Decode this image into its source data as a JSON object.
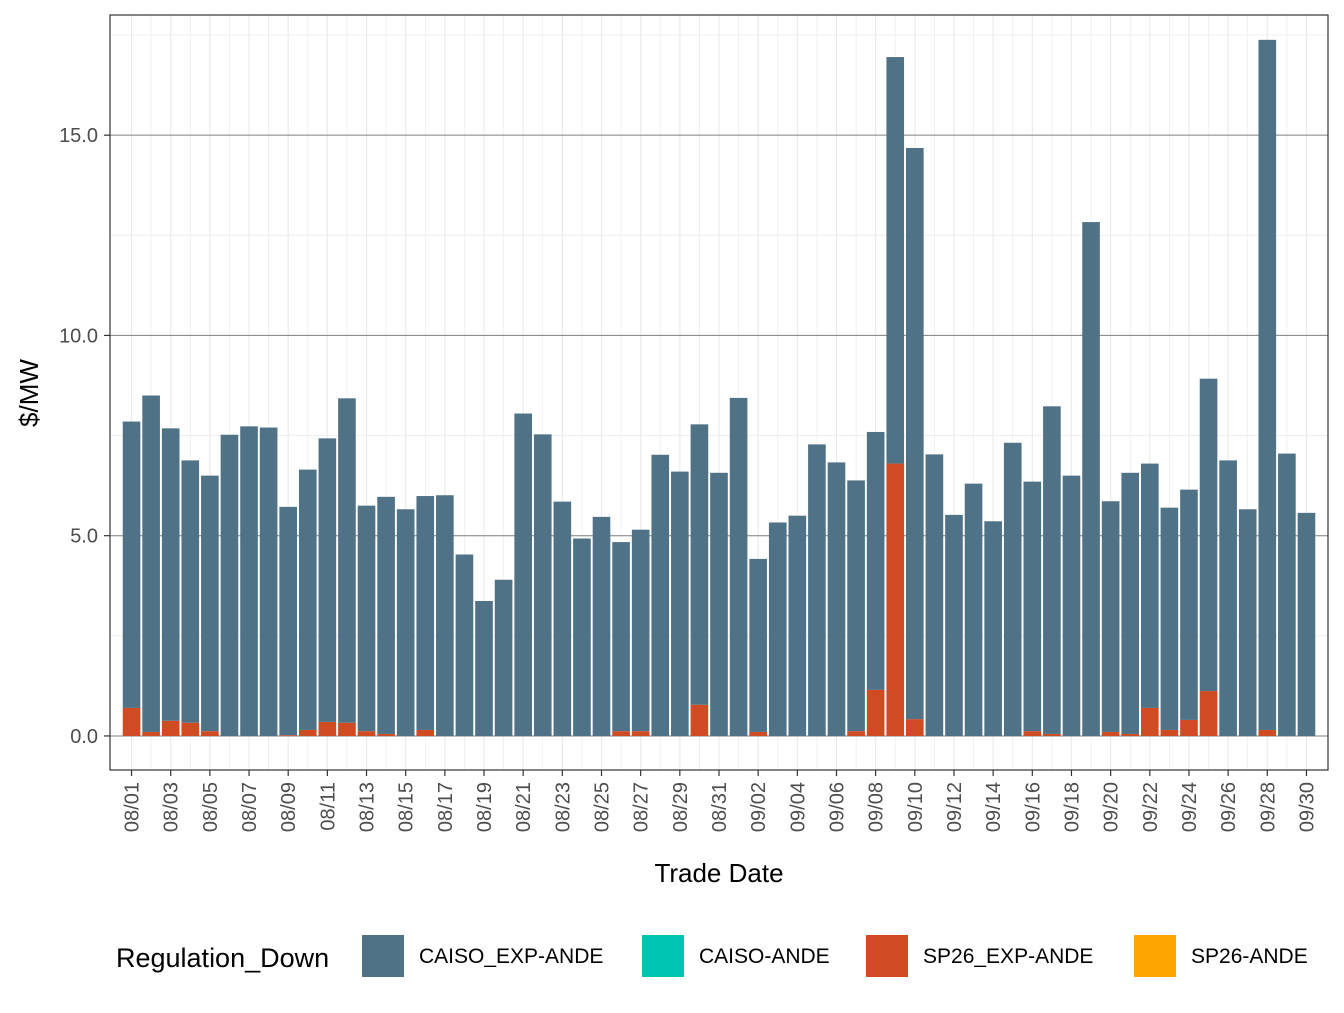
{
  "chart_data": {
    "type": "bar",
    "stacked": true,
    "xlabel": "Trade Date",
    "ylabel": "$/MW",
    "ylim": [
      -0.85,
      18
    ],
    "yticks": [
      0,
      5,
      10,
      15
    ],
    "ytick_labels": [
      "0.0",
      "5.0",
      "10.0",
      "15.0"
    ],
    "grid": true,
    "legend_title": "Regulation_Down",
    "legend_position": "bottom",
    "categories": [
      "08/01",
      "08/02",
      "08/03",
      "08/04",
      "08/05",
      "08/06",
      "08/07",
      "08/08",
      "08/09",
      "08/10",
      "08/11",
      "08/12",
      "08/13",
      "08/14",
      "08/15",
      "08/16",
      "08/17",
      "08/18",
      "08/19",
      "08/20",
      "08/21",
      "08/22",
      "08/23",
      "08/24",
      "08/25",
      "08/26",
      "08/27",
      "08/28",
      "08/29",
      "08/30",
      "08/31",
      "09/01",
      "09/02",
      "09/03",
      "09/04",
      "09/05",
      "09/06",
      "09/07",
      "09/08",
      "09/09",
      "09/10",
      "09/11",
      "09/12",
      "09/13",
      "09/14",
      "09/15",
      "09/16",
      "09/17",
      "09/18",
      "09/19",
      "09/20",
      "09/21",
      "09/22",
      "09/23",
      "09/24",
      "09/25",
      "09/26",
      "09/27",
      "09/28",
      "09/29",
      "09/30"
    ],
    "tick_labels": [
      "08/01",
      "08/03",
      "08/05",
      "08/07",
      "08/09",
      "08/11",
      "08/13",
      "08/15",
      "08/17",
      "08/19",
      "08/21",
      "08/23",
      "08/25",
      "08/27",
      "08/29",
      "08/31",
      "09/02",
      "09/04",
      "09/06",
      "09/08",
      "09/10",
      "09/12",
      "09/14",
      "09/16",
      "09/18",
      "09/20",
      "09/22",
      "09/24",
      "09/26",
      "09/28",
      "09/30"
    ],
    "series": [
      {
        "name": "SP26_EXP-ANDE",
        "color": "#D04A22",
        "values": [
          0.7,
          0.1,
          0.38,
          0.33,
          0.12,
          0,
          0,
          0,
          0.02,
          0.15,
          0.35,
          0.33,
          0.12,
          0.05,
          0,
          0.15,
          0,
          0,
          0,
          0,
          0,
          0,
          0,
          0,
          0,
          0.12,
          0.12,
          0,
          0,
          0.78,
          0,
          0,
          0.1,
          0,
          0,
          0,
          0,
          0.12,
          1.15,
          6.8,
          0.42,
          0,
          0,
          0,
          0,
          0,
          0.12,
          0.05,
          0,
          0,
          0.1,
          0.05,
          0.7,
          0.15,
          0.4,
          1.12,
          0,
          0,
          0.15,
          0,
          0
        ]
      },
      {
        "name": "CAISO_EXP-ANDE",
        "color": "#4F7286",
        "values": [
          7.15,
          8.4,
          7.3,
          6.55,
          6.38,
          7.52,
          7.73,
          7.7,
          5.7,
          6.5,
          7.08,
          8.1,
          5.63,
          5.92,
          5.66,
          5.84,
          6.01,
          4.53,
          3.37,
          3.9,
          8.05,
          7.53,
          5.85,
          4.93,
          5.47,
          4.72,
          5.03,
          7.02,
          6.6,
          7.0,
          6.57,
          8.44,
          4.32,
          5.33,
          5.5,
          7.28,
          6.83,
          6.26,
          6.44,
          10.15,
          14.26,
          7.03,
          5.52,
          6.3,
          5.36,
          7.32,
          6.23,
          8.18,
          6.5,
          12.83,
          5.76,
          6.52,
          6.1,
          5.55,
          5.75,
          7.8,
          6.88,
          5.66,
          17.23,
          7.05,
          5.57
        ]
      },
      {
        "name": "CAISO-ANDE",
        "color": "#00C5B2",
        "values": [
          0,
          0,
          0,
          0,
          0,
          0,
          0,
          0,
          0,
          0,
          0,
          0,
          0,
          0,
          0,
          0,
          0,
          0,
          0,
          0,
          0,
          0,
          0,
          0,
          0,
          0,
          0,
          0,
          0,
          0,
          0,
          0,
          0,
          0,
          0,
          0,
          0,
          0,
          0,
          0,
          0,
          0,
          0,
          0,
          0,
          0,
          0,
          0,
          0,
          0,
          0,
          0,
          0,
          0,
          0,
          0,
          0,
          0,
          0,
          0,
          0
        ]
      },
      {
        "name": "SP26-ANDE",
        "color": "#FFA500",
        "values": [
          0,
          0,
          0,
          0,
          0,
          0,
          0,
          0,
          0,
          0,
          0,
          0,
          0,
          0,
          0,
          0,
          0,
          0,
          0,
          0,
          0,
          0,
          0,
          0,
          0,
          0,
          0,
          0,
          0,
          0,
          0,
          0,
          0,
          0,
          0,
          0,
          0,
          0,
          0,
          0,
          0,
          0,
          0,
          0,
          0,
          0,
          0,
          0,
          0,
          0,
          0,
          0,
          0,
          0,
          0,
          0,
          0,
          0,
          0,
          0,
          0
        ]
      }
    ],
    "legend": [
      {
        "label": "CAISO_EXP-ANDE",
        "color": "#4F7286"
      },
      {
        "label": "CAISO-ANDE",
        "color": "#00C5B2"
      },
      {
        "label": "SP26_EXP-ANDE",
        "color": "#D04A22"
      },
      {
        "label": "SP26-ANDE",
        "color": "#FFA500"
      }
    ]
  }
}
